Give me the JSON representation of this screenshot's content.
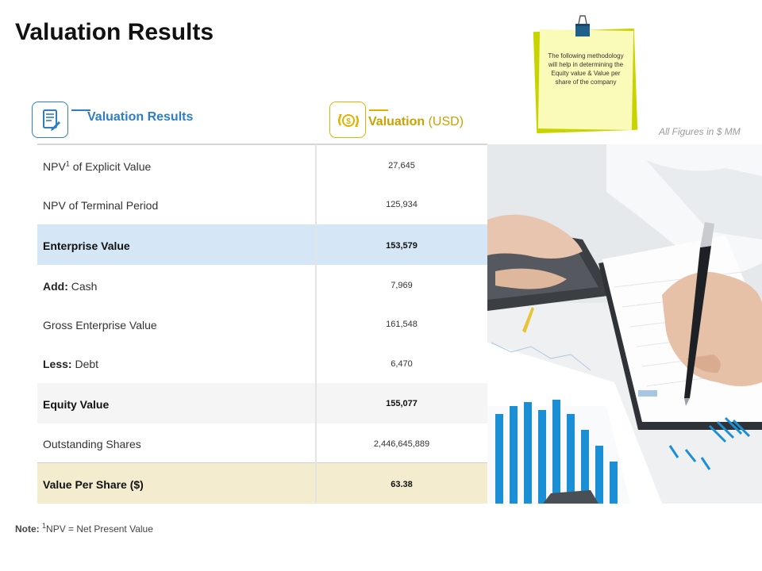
{
  "page": {
    "title": "Valuation Results"
  },
  "headers": {
    "left_label": "Valuation Results",
    "right_label": "Valuation",
    "right_unit": "(USD)",
    "left_icon": "document-edit-icon",
    "right_icon": "dollar-cycle-icon"
  },
  "sticky_note": {
    "text": "The following methodology will help in determining the Equity value & Value per share of the company"
  },
  "figures_note": "All Figures in $ MM",
  "table": {
    "rows": [
      {
        "prefix": "",
        "label": "NPV",
        "sup": "1",
        "suffix": " of Explicit Value",
        "value": "27,645"
      },
      {
        "prefix": "",
        "label": "NPV of Terminal Period",
        "value": "125,934"
      },
      {
        "prefix": "",
        "label": "Enterprise Value",
        "value": "153,579"
      },
      {
        "prefix": "Add:",
        "label": " Cash",
        "value": "7,969"
      },
      {
        "prefix": "",
        "label": "Gross Enterprise Value",
        "value": "161,548"
      },
      {
        "prefix": "Less:",
        "label": " Debt",
        "value": "6,470"
      },
      {
        "prefix": "",
        "label": "Equity Value",
        "value": "155,077"
      },
      {
        "prefix": "",
        "label": "Outstanding Shares",
        "value": "2,446,645,889"
      },
      {
        "prefix": "",
        "label": "Value Per Share ($)",
        "value": "63.38"
      }
    ]
  },
  "footnote": {
    "label": "Note:",
    "sup": "1",
    "text": "NPV = Net Present Value"
  },
  "colors": {
    "accent_blue": "#2d7ec4",
    "accent_gold": "#e2b100",
    "row_highlight_blue": "#d5e6f7",
    "row_highlight_cream": "#f4ecce",
    "sticky_yellow": "#fbfbb9",
    "sticky_lime": "#c8d400"
  }
}
